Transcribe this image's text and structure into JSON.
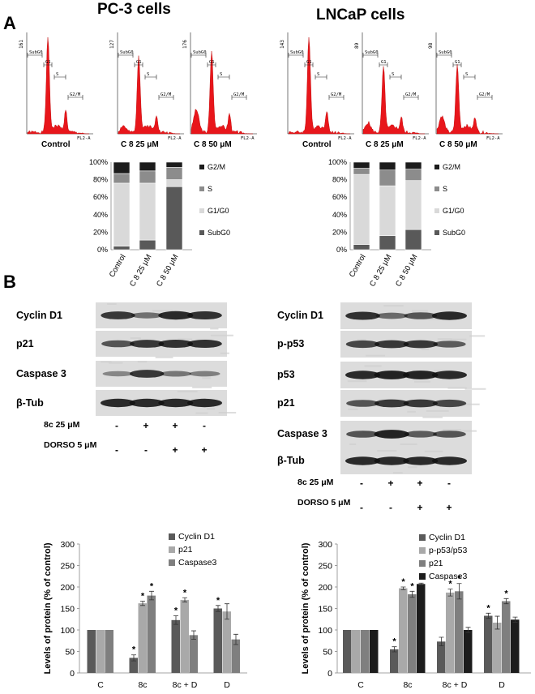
{
  "panel_a": {
    "letter": "A",
    "pc3_title": "PC-3 cells",
    "lncap_title": "LNCaP cells",
    "pc3_hist_labels": [
      "Control",
      "C 8 25 μM",
      "C 8 50 μM"
    ],
    "lncap_hist_labels": [
      "Control",
      "C 8 25 μM",
      "C 8 50 μM"
    ],
    "pc3_hist_ymax": [
      "161",
      "127",
      "176"
    ],
    "lncap_hist_ymax": [
      "143",
      "89",
      "98"
    ],
    "gate_labels": [
      "SubG0",
      "G1",
      "S",
      "G2/M"
    ],
    "hist_xlabel": "FL2-A"
  },
  "panel_b": {
    "letter": "B",
    "pc3_blot_rows": [
      "Cyclin D1",
      "p21",
      "Caspase 3",
      "β-Tub"
    ],
    "lncap_blot_rows": [
      "Cyclin D1",
      "p-p53",
      "p53",
      "p21",
      "Caspase 3",
      "β-Tub"
    ],
    "treat_rows": [
      {
        "label": "8c 25 μM",
        "signs": [
          "-",
          "+",
          "+",
          "-"
        ]
      },
      {
        "label": "DORSO 5 μM",
        "signs": [
          "-",
          "-",
          "+",
          "+"
        ]
      }
    ]
  },
  "colors": {
    "hist_red": "#e8161b",
    "g2m": "#1c1c1c",
    "s": "#8c8c8c",
    "g1": "#d9d9d9",
    "subg0": "#595959",
    "bar_dark": "#5a5a5a",
    "bar_light": "#a9a9a9",
    "bar_mid": "#7f7f7f"
  },
  "chart_data": [
    {
      "id": "pc3-cellcycle",
      "type": "bar",
      "stacked": true,
      "categories": [
        "Control",
        "C 8 25 μM",
        "C 8 50 μM"
      ],
      "series": [
        {
          "name": "SubG0",
          "values": [
            4,
            11,
            72
          ]
        },
        {
          "name": "G1/G0",
          "values": [
            72,
            65,
            8
          ]
        },
        {
          "name": "S",
          "values": [
            11,
            14,
            14
          ]
        },
        {
          "name": "G2/M",
          "values": [
            13,
            10,
            6
          ]
        }
      ],
      "ylim": [
        0,
        100
      ],
      "yticks": [
        "0%",
        "20%",
        "40%",
        "60%",
        "80%",
        "100%"
      ],
      "legend": "right"
    },
    {
      "id": "lncap-cellcycle",
      "type": "bar",
      "stacked": true,
      "categories": [
        "Control",
        "C 8 25 μM",
        "C 8 50 μM"
      ],
      "series": [
        {
          "name": "SubG0",
          "values": [
            6,
            16,
            23
          ]
        },
        {
          "name": "G1/G0",
          "values": [
            80,
            57,
            56
          ]
        },
        {
          "name": "S",
          "values": [
            7,
            18,
            13
          ]
        },
        {
          "name": "G2/M",
          "values": [
            7,
            9,
            8
          ]
        }
      ],
      "ylim": [
        0,
        100
      ],
      "yticks": [
        "0%",
        "20%",
        "40%",
        "60%",
        "80%",
        "100%"
      ],
      "legend": "right"
    },
    {
      "id": "pc3-protein",
      "type": "bar",
      "ylabel": "Levels of protein (% of control)",
      "ylim": [
        0,
        300
      ],
      "yticks": [
        "0",
        "50",
        "100",
        "150",
        "200",
        "250",
        "300"
      ],
      "categories": [
        "C",
        "8c",
        "8c + D",
        "D"
      ],
      "series": [
        {
          "name": "Cyclin D1",
          "values": [
            100,
            35,
            123,
            150
          ],
          "errors": [
            0,
            7,
            10,
            7
          ],
          "sig": [
            false,
            true,
            true,
            true
          ]
        },
        {
          "name": "p21",
          "values": [
            100,
            162,
            170,
            143
          ],
          "errors": [
            0,
            5,
            5,
            18
          ],
          "sig": [
            false,
            true,
            true,
            false
          ]
        },
        {
          "name": "Caspase3",
          "values": [
            100,
            180,
            88,
            78
          ],
          "errors": [
            0,
            10,
            10,
            12
          ],
          "sig": [
            false,
            true,
            false,
            false
          ]
        }
      ],
      "legend": "top-right"
    },
    {
      "id": "lncap-protein",
      "type": "bar",
      "ylabel": "Levels of protein (% of control)",
      "ylim": [
        0,
        300
      ],
      "yticks": [
        "0",
        "50",
        "100",
        "150",
        "200",
        "250",
        "300"
      ],
      "categories": [
        "C",
        "8c",
        "8c + D",
        "D"
      ],
      "series": [
        {
          "name": "Cyclin D1",
          "values": [
            100,
            55,
            73,
            133
          ],
          "errors": [
            0,
            6,
            10,
            6
          ],
          "sig": [
            false,
            true,
            false,
            true
          ]
        },
        {
          "name": "p-p53/p53",
          "values": [
            100,
            197,
            187,
            117
          ],
          "errors": [
            0,
            3,
            8,
            15
          ],
          "sig": [
            false,
            true,
            true,
            false
          ]
        },
        {
          "name": "p21",
          "values": [
            100,
            183,
            190,
            167
          ],
          "errors": [
            0,
            7,
            18,
            6
          ],
          "sig": [
            false,
            true,
            true,
            true
          ]
        },
        {
          "name": "Caspase3",
          "values": [
            100,
            207,
            100,
            124
          ],
          "errors": [
            0,
            2,
            6,
            6
          ],
          "sig": [
            false,
            true,
            false,
            false
          ]
        }
      ],
      "legend": "top-right"
    }
  ]
}
